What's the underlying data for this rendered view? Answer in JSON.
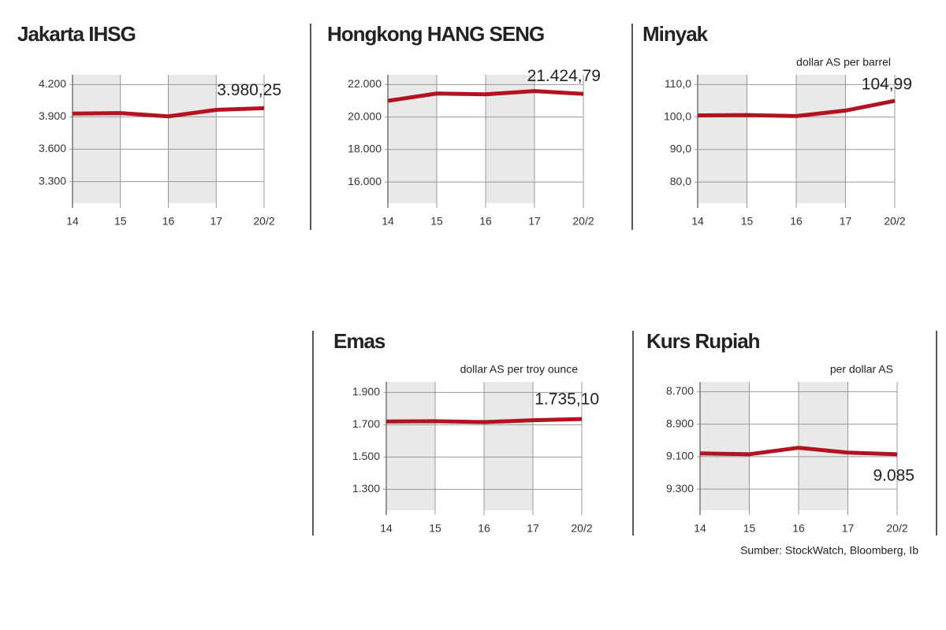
{
  "chart_data": [
    {
      "type": "line",
      "title": "Jakarta IHSG",
      "categories": [
        "14",
        "15",
        "16",
        "17",
        "20/2"
      ],
      "series": [
        {
          "color": "#b3121f",
          "values": [
            3930,
            3935,
            3905,
            3965,
            3980.25
          ],
          "value_labels": [
            null,
            null,
            null,
            null,
            "3.980,25"
          ]
        }
      ],
      "ylim": [
        3100,
        4290
      ],
      "yticks": [
        {
          "value": 4200,
          "label": "4.200"
        },
        {
          "value": 3900,
          "label": "3.900"
        },
        {
          "value": 3600,
          "label": "3.600"
        },
        {
          "value": 3300,
          "label": "3.300"
        }
      ],
      "grid": true
    },
    {
      "type": "line",
      "title": "Hongkong HANG SENG",
      "categories": [
        "14",
        "15",
        "16",
        "17",
        "20/2"
      ],
      "series": [
        {
          "color": "#b3121f",
          "values": [
            21000,
            21450,
            21400,
            21600,
            21424.79
          ],
          "value_labels": [
            null,
            null,
            null,
            null,
            "21.424,79"
          ]
        }
      ],
      "ylim": [
        14700,
        22600
      ],
      "yticks": [
        {
          "value": 22000,
          "label": "22.000"
        },
        {
          "value": 20000,
          "label": "20.000"
        },
        {
          "value": 18000,
          "label": "18.000"
        },
        {
          "value": 16000,
          "label": "16.000"
        }
      ],
      "grid": true
    },
    {
      "type": "line",
      "title": "Minyak",
      "subtitle": "dollar AS per barrel",
      "categories": [
        "14",
        "15",
        "16",
        "17",
        "20/2"
      ],
      "series": [
        {
          "color": "#b3121f",
          "values": [
            100.5,
            100.6,
            100.3,
            102,
            104.99
          ],
          "value_labels": [
            null,
            null,
            null,
            null,
            "104,99"
          ]
        }
      ],
      "ylim": [
        73.5,
        113
      ],
      "yticks": [
        {
          "value": 110,
          "label": "110,0"
        },
        {
          "value": 100,
          "label": "100,0"
        },
        {
          "value": 90,
          "label": "90,0"
        },
        {
          "value": 80,
          "label": "80,0"
        }
      ],
      "grid": true
    },
    {
      "type": "line",
      "title": "Emas",
      "subtitle": "dollar AS per troy ounce",
      "categories": [
        "14",
        "15",
        "16",
        "17",
        "20/2"
      ],
      "series": [
        {
          "color": "#b3121f",
          "values": [
            1720,
            1722,
            1716,
            1728,
            1735.1
          ],
          "value_labels": [
            null,
            null,
            null,
            null,
            "1.735,10"
          ]
        }
      ],
      "ylim": [
        1170,
        1965
      ],
      "yticks": [
        {
          "value": 1900,
          "label": "1.900"
        },
        {
          "value": 1700,
          "label": "1.700"
        },
        {
          "value": 1500,
          "label": "1.500"
        },
        {
          "value": 1300,
          "label": "1.300"
        }
      ],
      "grid": true
    },
    {
      "type": "line",
      "title": "Kurs Rupiah",
      "subtitle": "per dollar AS",
      "categories": [
        "14",
        "15",
        "16",
        "17",
        "20/2"
      ],
      "series": [
        {
          "color": "#b3121f",
          "values": [
            9080,
            9085,
            9045,
            9075,
            9085
          ],
          "value_labels": [
            null,
            null,
            null,
            null,
            "9.085"
          ]
        }
      ],
      "ylim": [
        9430,
        8640
      ],
      "yticks": [
        {
          "value": 8700,
          "label": "8.700"
        },
        {
          "value": 8900,
          "label": "8.900"
        },
        {
          "value": 9100,
          "label": "9.100"
        },
        {
          "value": 9300,
          "label": "9.300"
        }
      ],
      "grid": true
    }
  ],
  "source": "Sumber: StockWatch, Bloomberg, Ib"
}
